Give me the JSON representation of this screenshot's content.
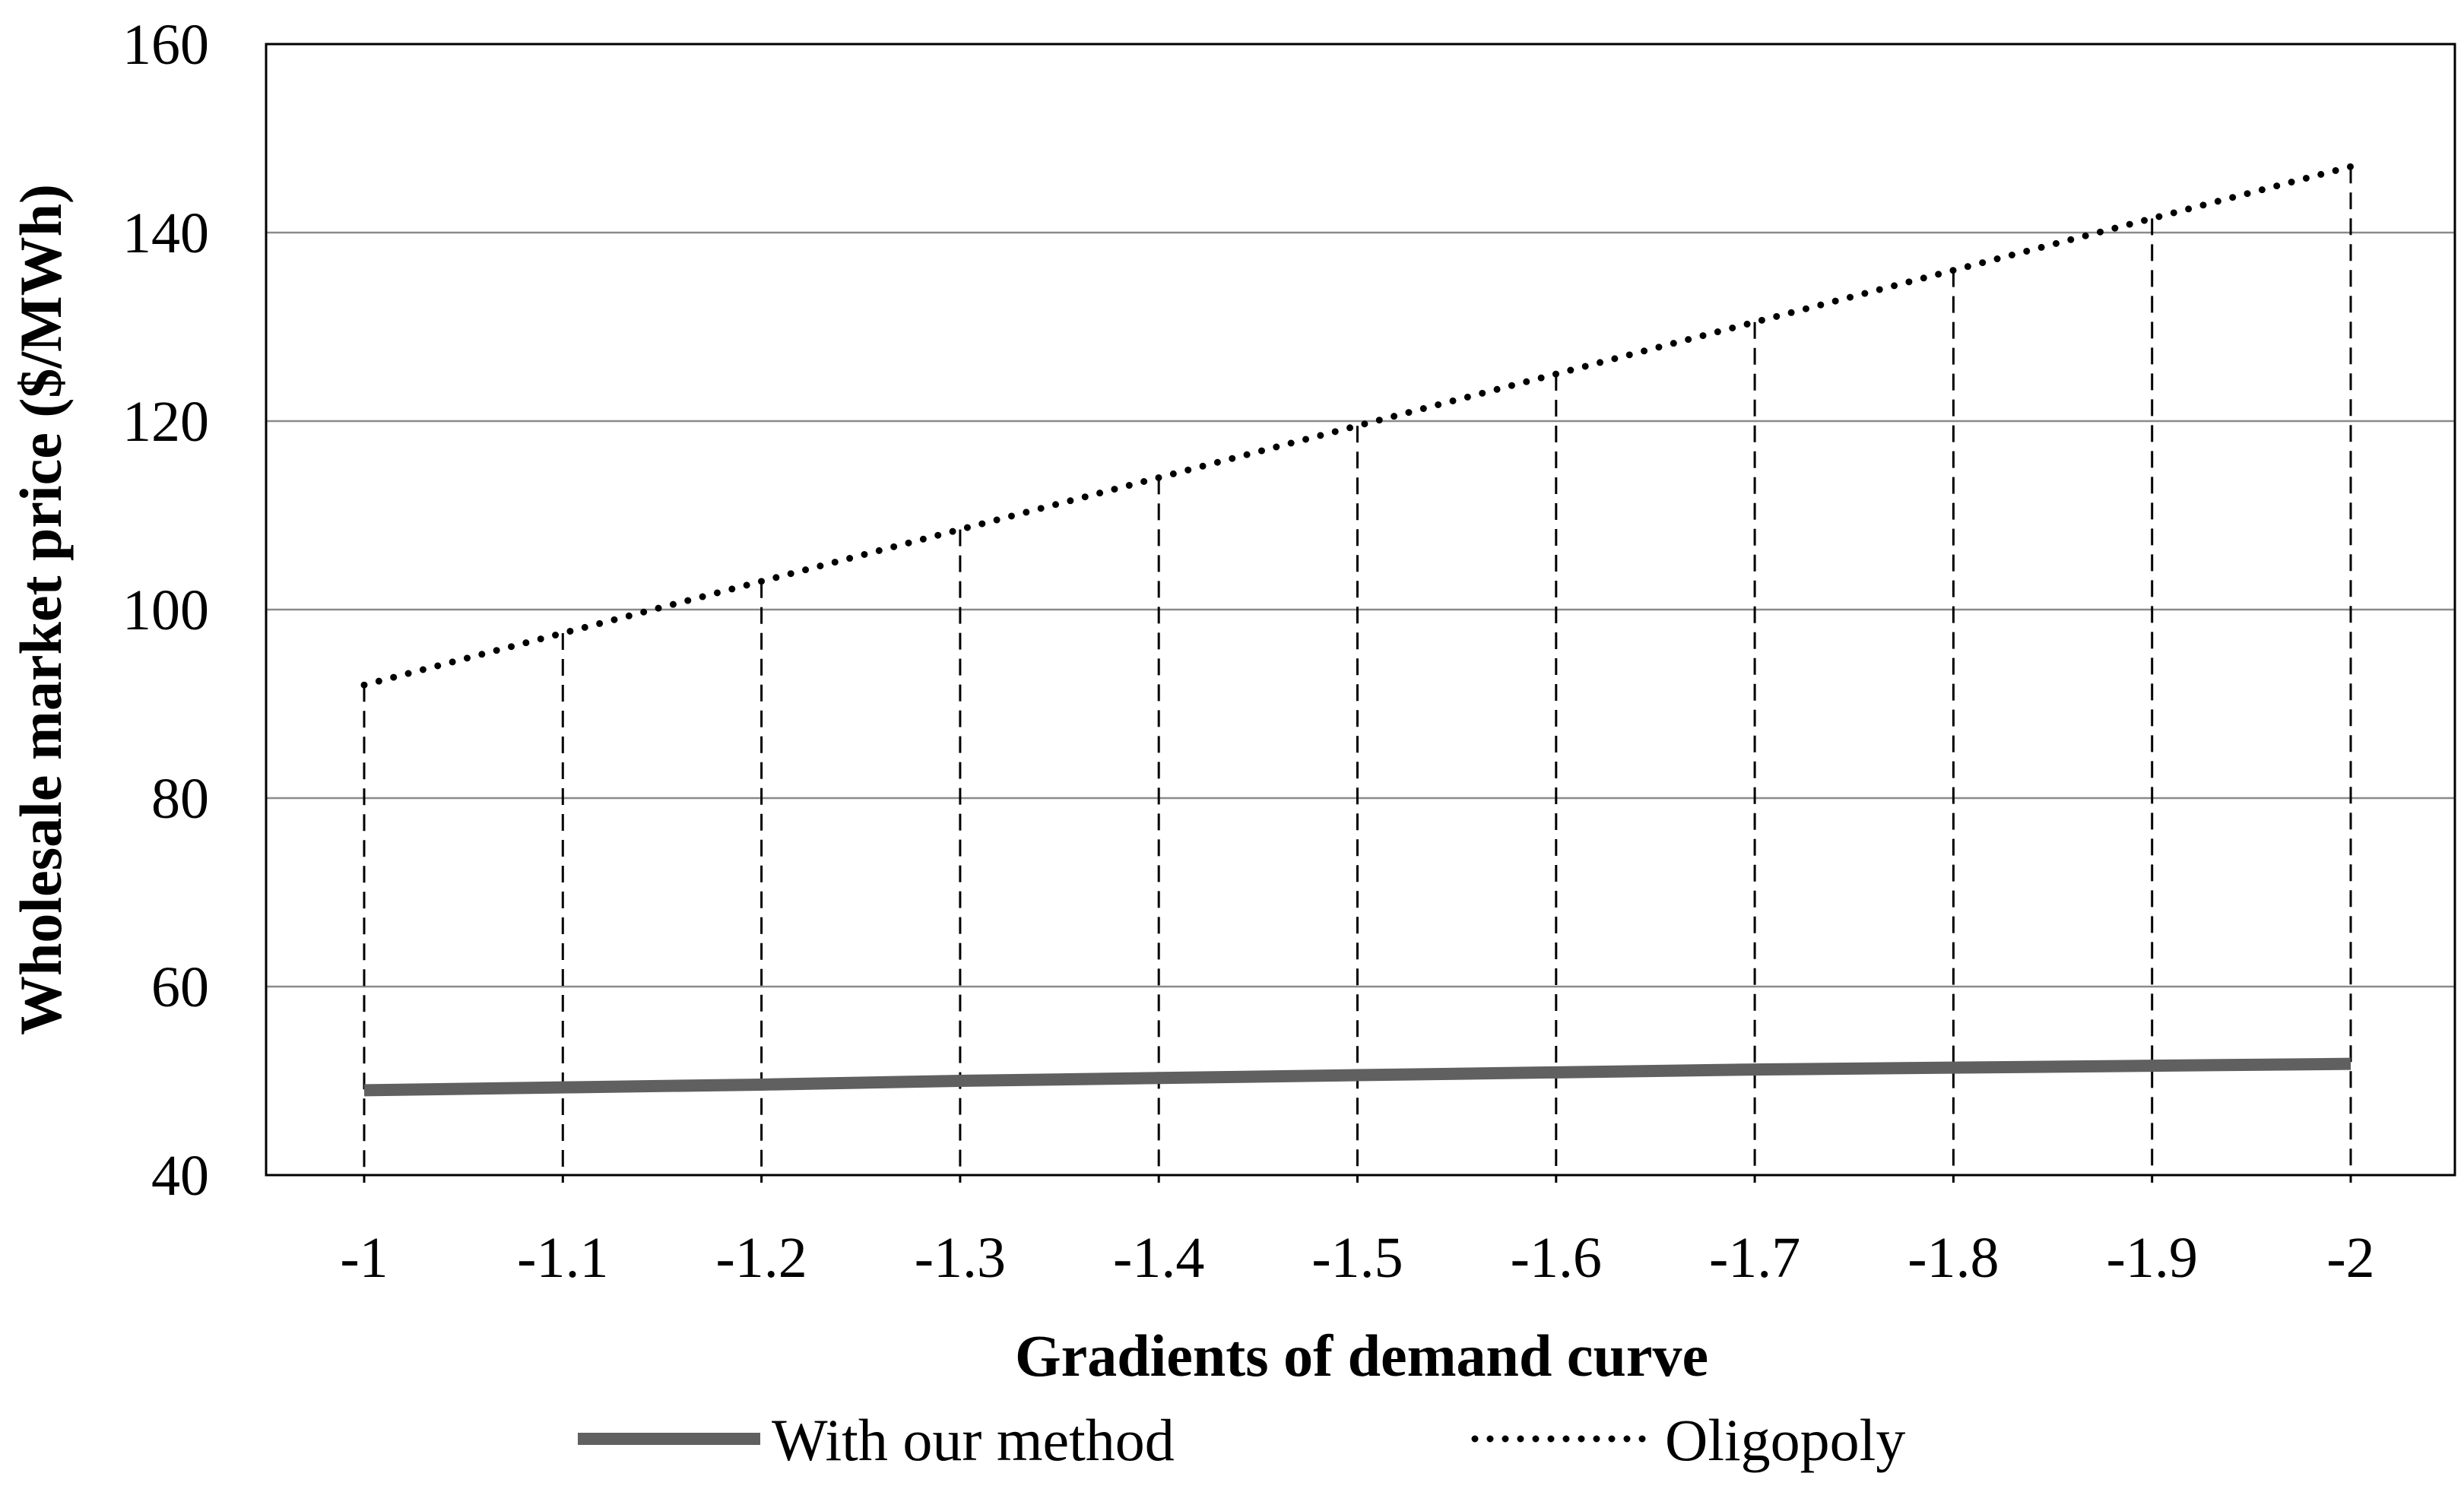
{
  "chart_data": {
    "type": "line",
    "title": "",
    "xlabel": "Gradients of demand curve",
    "ylabel": "Wholesale market price  ($/MWh)",
    "categories": [
      "-1",
      "-1.1",
      "-1.2",
      "-1.3",
      "-1.4",
      "-1.5",
      "-1.6",
      "-1.7",
      "-1.8",
      "-1.9",
      "-2"
    ],
    "x": [
      -1,
      -1.1,
      -1.2,
      -1.3,
      -1.4,
      -1.5,
      -1.6,
      -1.7,
      -1.8,
      -1.9,
      -2
    ],
    "ylim": [
      40,
      160
    ],
    "yticks": [
      "40",
      "60",
      "80",
      "100",
      "120",
      "140",
      "160"
    ],
    "grid": "horizontal",
    "drop_lines": "dashed vertical lines at each category",
    "legend_position": "bottom",
    "series": [
      {
        "name": "With our method",
        "style": "solid",
        "color": "#606060",
        "values": [
          49,
          49.3,
          49.6,
          50,
          50.3,
          50.6,
          50.9,
          51.2,
          51.4,
          51.6,
          51.8
        ]
      },
      {
        "name": "Oligopoly",
        "style": "dotted",
        "color": "#000000",
        "values": [
          92,
          97.5,
          103,
          108.5,
          114,
          119.5,
          125,
          130.5,
          136,
          141.5,
          147
        ]
      }
    ]
  }
}
